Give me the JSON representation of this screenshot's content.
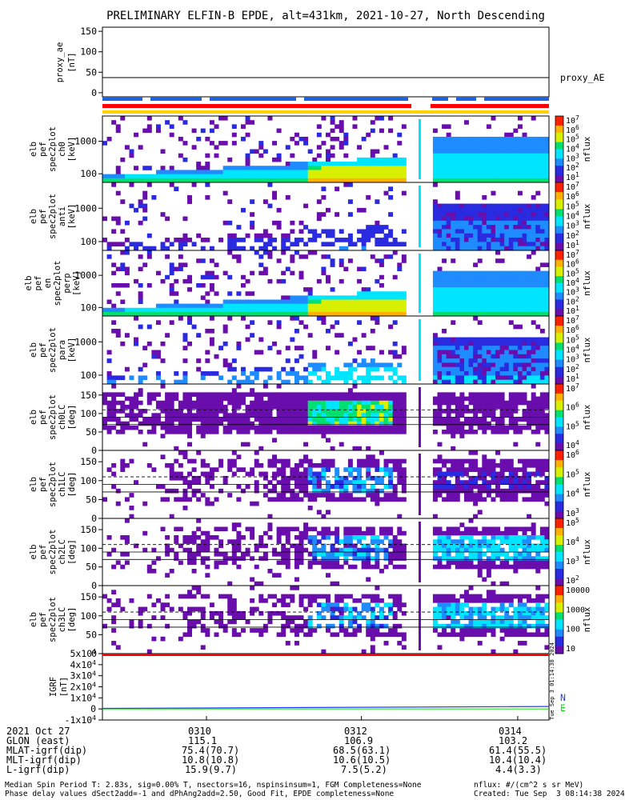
{
  "title": "PRELIMINARY ELFIN-B EPDE, alt=431km, 2021-10-27, North Descending",
  "colors": {
    "ae_line": "#000000",
    "bar_blue": "#1e64dc",
    "bar_red": "#ff0000",
    "bar_yellow": "#ffd200",
    "igrf_N": "#1e3cff",
    "igrf_E": "#00e000",
    "spectrum": [
      "#ffffff",
      "#6a0dad",
      "#2a2ae0",
      "#1e8cff",
      "#00e5ff",
      "#00e070",
      "#d8f000",
      "#ffb000",
      "#ff2000"
    ]
  },
  "chart_data": [
    {
      "type": "line",
      "name": "proxy_ae",
      "ylabel": "proxy_ae\n[nT]",
      "yticks": [
        "150",
        "100",
        "50",
        "0"
      ],
      "ylim": [
        -10,
        160
      ],
      "legend": "proxy_AE",
      "x": [
        0,
        1
      ],
      "values": [
        37,
        37
      ]
    },
    {
      "type": "heatmap",
      "name": "elb pef spec2plot ch0 [keV]",
      "ylabel": [
        "elb",
        "pef",
        "spec2plot",
        "ch0",
        "[keV]"
      ],
      "yscale": "log",
      "yticks": [
        "1000",
        "100"
      ],
      "cb_label": "nflux",
      "cb_ticks": [
        "10^7",
        "10^6",
        "10^5",
        "10^4",
        "10^3",
        "10^2",
        "10^1"
      ]
    },
    {
      "type": "heatmap",
      "name": "elb pef spec2plot anti [keV]",
      "ylabel": [
        "elb",
        "pef",
        "spec2plot",
        "anti",
        "[keV]"
      ],
      "yscale": "log",
      "yticks": [
        "1000",
        "100"
      ],
      "cb_label": "nflux",
      "cb_ticks": [
        "10^7",
        "10^6",
        "10^5",
        "10^4",
        "10^3",
        "10^2",
        "10^1"
      ]
    },
    {
      "type": "heatmap",
      "name": "elb pef en spec2plot perp [keV]",
      "ylabel": [
        "elb",
        "pef",
        "en",
        "spec2plot",
        "perp",
        "[keV]"
      ],
      "yscale": "log",
      "yticks": [
        "1000",
        "100"
      ],
      "cb_label": "nflux",
      "cb_ticks": [
        "10^7",
        "10^6",
        "10^5",
        "10^4",
        "10^3",
        "10^2",
        "10^1"
      ]
    },
    {
      "type": "heatmap",
      "name": "elb pef spec2plot para [keV]",
      "ylabel": [
        "elb",
        "pef",
        "spec2plot",
        "para",
        "[keV]"
      ],
      "yscale": "log",
      "yticks": [
        "1000",
        "100"
      ],
      "cb_label": "nflux",
      "cb_ticks": [
        "10^7",
        "10^6",
        "10^5",
        "10^4",
        "10^3",
        "10^2",
        "10^1"
      ]
    },
    {
      "type": "heatmap",
      "name": "elb pef spec2plot ch0LC [deg]",
      "ylabel": [
        "elb",
        "pef",
        "spec2plot",
        "ch0LC",
        "[deg]"
      ],
      "yticks": [
        "150",
        "100",
        "50",
        "0"
      ],
      "cb_label": "nflux",
      "cb_ticks": [
        "10^7",
        "10^6",
        "10^5",
        "10^4"
      ]
    },
    {
      "type": "heatmap",
      "name": "elb pef spec2plot ch1LC [deg]",
      "ylabel": [
        "elb",
        "pef",
        "spec2plot",
        "ch1LC",
        "[deg]"
      ],
      "yticks": [
        "150",
        "100",
        "50",
        "0"
      ],
      "cb_label": "nflux",
      "cb_ticks": [
        "10^6",
        "10^5",
        "10^4",
        "10^3"
      ]
    },
    {
      "type": "heatmap",
      "name": "elb pef spec2plot ch2LC [deg]",
      "ylabel": [
        "elb",
        "pef",
        "spec2plot",
        "ch2LC",
        "[deg]"
      ],
      "yticks": [
        "150",
        "100",
        "50",
        "0"
      ],
      "cb_label": "nflux",
      "cb_ticks": [
        "10^5",
        "10^4",
        "10^3",
        "10^2"
      ]
    },
    {
      "type": "heatmap",
      "name": "elb pef spec2plot ch3LC [deg]",
      "ylabel": [
        "elb",
        "pef",
        "spec2plot",
        "ch3LC",
        "[deg]"
      ],
      "yticks": [
        "150",
        "100",
        "50",
        "0"
      ],
      "cb_label": "nflux",
      "cb_ticks": [
        "10000",
        "1000",
        "100",
        "10"
      ]
    },
    {
      "type": "line",
      "name": "IGRF [nT]",
      "ylabel": [
        "IGRF",
        "[nT]"
      ],
      "yticks": [
        "5x10^4",
        "4x10^4",
        "3x10^4",
        "2x10^4",
        "1x10^4",
        "0",
        "-1x10^4"
      ],
      "ylim": [
        -10000,
        50000
      ],
      "series": [
        {
          "name": "N",
          "x": [
            0,
            1
          ],
          "values": [
            500,
            2200
          ]
        },
        {
          "name": "E",
          "x": [
            0,
            1
          ],
          "values": [
            0,
            0
          ]
        }
      ]
    }
  ],
  "xaxis": {
    "ticks": [
      "0310",
      "0312",
      "0314"
    ],
    "rows": [
      {
        "label": "2021 Oct 27",
        "values": [
          "0310",
          "0312",
          "0314"
        ]
      },
      {
        "label": "GLON (east)",
        "values": [
          "115.1",
          "106.9",
          "103.2"
        ]
      },
      {
        "label": "MLAT-igrf(dip)",
        "values": [
          "75.4(70.7)",
          "68.5(63.1)",
          "61.4(55.5)"
        ]
      },
      {
        "label": "MLT-igrf(dip)",
        "values": [
          "10.8(10.8)",
          "10.6(10.5)",
          "10.4(10.4)"
        ]
      },
      {
        "label": "L-igrf(dip)",
        "values": [
          "15.9(9.7)",
          "7.5(5.2)",
          "4.4(3.3)"
        ]
      }
    ]
  },
  "footer": {
    "line1": "Median Spin Period T: 2.83s, sig=0.00% T, nsectors=16, nspinsinsum=1, FGM Completeness=None",
    "line2": "Phase delay values dSect2add=-1 and dPhAng2add=2.50, Good Fit, EPDE completeness=None",
    "units": "nflux: #/(cm^2 s sr MeV)",
    "created": "Created: Tue Sep  3 08:14:38 2024",
    "stamp": "Tue Sep  3 01:14:38 2024"
  }
}
